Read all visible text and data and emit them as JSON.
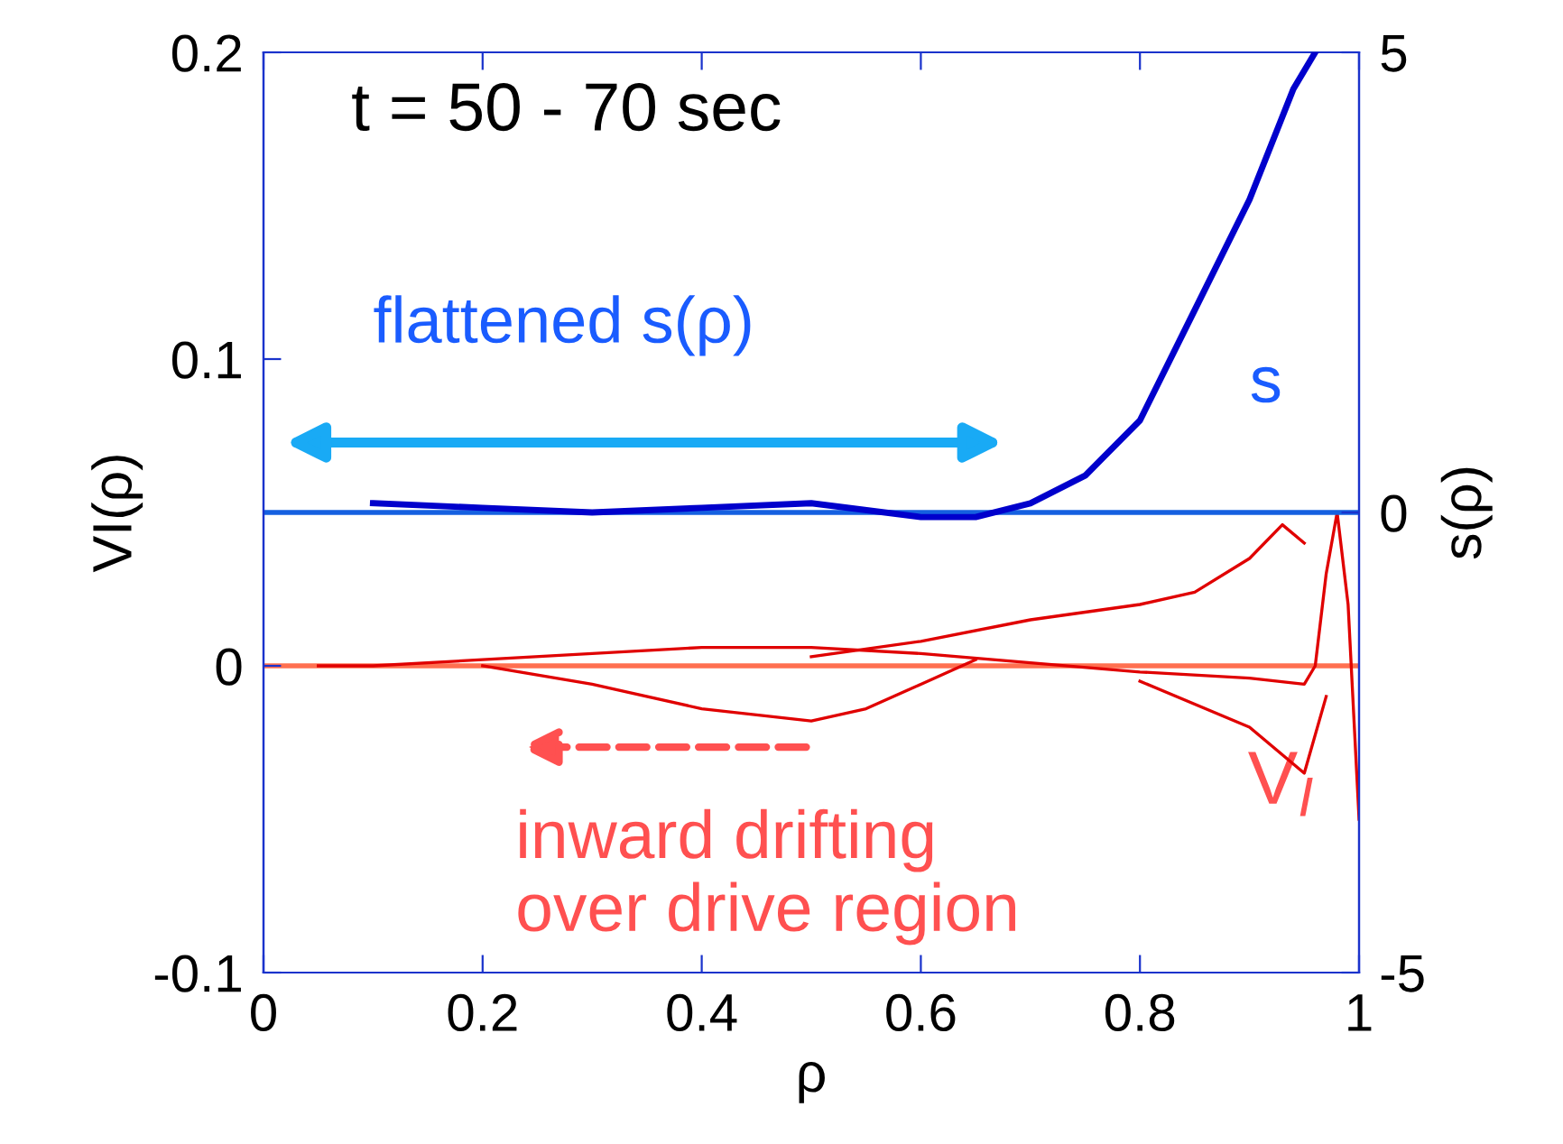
{
  "chart_data": {
    "type": "line",
    "xlabel": "ρ",
    "ylabel": "VI(ρ)",
    "y2label": "s(ρ)",
    "xlim": [
      0,
      1
    ],
    "xticks": [
      0,
      0.2,
      0.4,
      0.6,
      0.8,
      1
    ],
    "ylim": [
      -0.1,
      0.2
    ],
    "yticks": [
      -0.1,
      0,
      0.1,
      0.2
    ],
    "y2lim": [
      -5,
      5
    ],
    "y2ticks": [
      -5,
      0,
      5
    ],
    "grid": false,
    "marker": "none",
    "line_style": "solid",
    "series": [
      {
        "name": "s",
        "axis": "y2",
        "color": "#0000cc",
        "x": [
          0.1,
          0.2,
          0.3,
          0.4,
          0.5,
          0.6,
          0.65,
          0.7,
          0.75,
          0.8,
          0.85,
          0.9,
          0.94,
          0.96
        ],
        "values": [
          0.1,
          0.05,
          0,
          0.05,
          0.1,
          -0.05,
          -0.05,
          0.1,
          0.4,
          1.0,
          2.2,
          3.4,
          4.6,
          5
        ]
      },
      {
        "name": "V$_{I}$",
        "color": "#e00000",
        "x": [
          0.05,
          0.1,
          0.2,
          0.3,
          0.4,
          0.5,
          0.6,
          0.7,
          0.8,
          0.9,
          0.95,
          0.96,
          0.97,
          0.98,
          0.99,
          1.0
        ],
        "values": [
          0,
          0,
          0.002,
          0.004,
          0.006,
          0.006,
          0.004,
          0.001,
          -0.002,
          -0.004,
          -0.006,
          0,
          0.03,
          0.05,
          0.02,
          -0.05
        ]
      },
      {
        "color": "#e00000",
        "x": [
          0.5,
          0.6,
          0.7,
          0.8,
          0.85,
          0.9,
          0.93,
          0.95
        ],
        "values": [
          0.003,
          0.008,
          0.015,
          0.02,
          0.024,
          0.035,
          0.046,
          0.04
        ]
      },
      {
        "color": "#e00000",
        "x": [
          0.2,
          0.3,
          0.4,
          0.5,
          0.55,
          0.6,
          0.65
        ],
        "values": [
          0,
          -0.006,
          -0.014,
          -0.018,
          -0.014,
          -0.006,
          0.002
        ]
      },
      {
        "color": "#e00000",
        "x": [
          0.8,
          0.9,
          0.95,
          0.97
        ],
        "values": [
          -0.005,
          -0.02,
          -0.035,
          -0.01
        ]
      }
    ],
    "ref_lines": [
      {
        "axis": "y2",
        "value": 0,
        "color": "#1560e0"
      },
      {
        "axis": "y",
        "value": 0,
        "color": "#ff7050"
      }
    ],
    "annotations": [
      "t = 50 - 70 sec",
      "flattened s(ρ)",
      "inward drifting\nover drive region"
    ]
  }
}
